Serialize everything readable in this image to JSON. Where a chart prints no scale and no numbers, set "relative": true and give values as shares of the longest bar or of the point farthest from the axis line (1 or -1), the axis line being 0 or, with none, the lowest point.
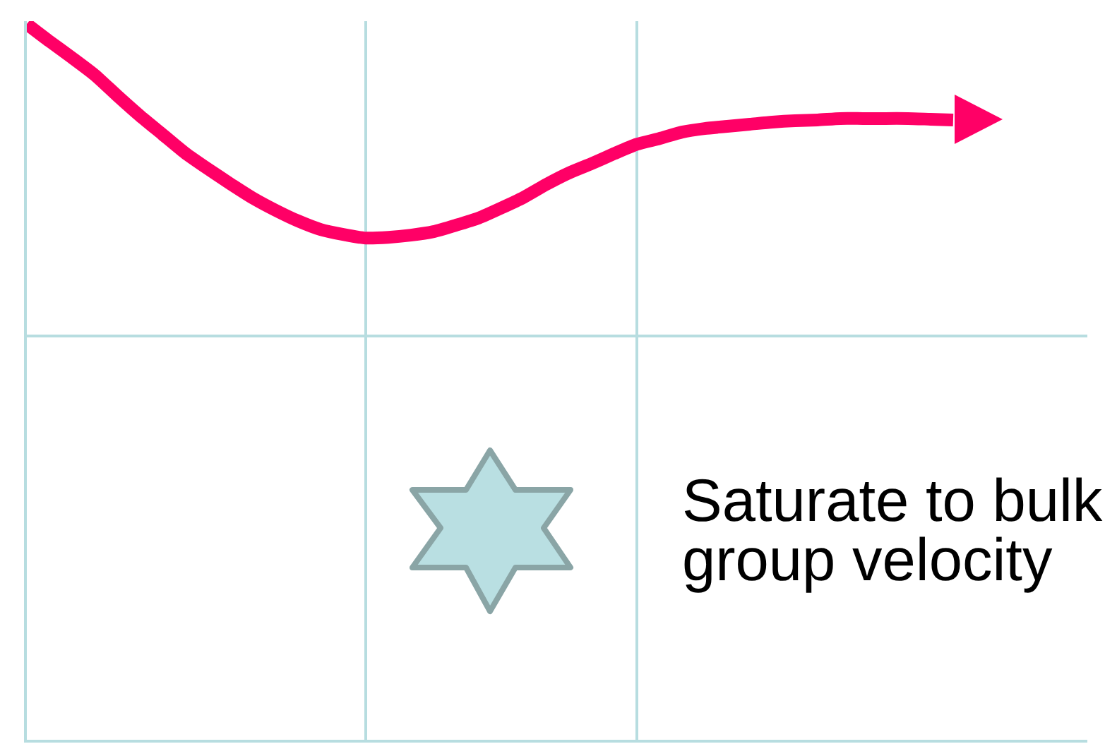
{
  "chart_data": {
    "type": "line",
    "relative": true,
    "grid": true,
    "categories": [
      null,
      null,
      null,
      null,
      null,
      null,
      null,
      null,
      null,
      null,
      null,
      null,
      null,
      null,
      null,
      null,
      null,
      null,
      null,
      null,
      null,
      null,
      null,
      null,
      null,
      null,
      null,
      null,
      null,
      null,
      null,
      null,
      null,
      null,
      null,
      null,
      null,
      null,
      null,
      null,
      null,
      null
    ],
    "series": [
      {
        "color": "#ff0066",
        "values": [
          1.0,
          0.976,
          0.953,
          0.929,
          0.9,
          0.872,
          0.846,
          0.82,
          0.798,
          0.777,
          0.757,
          0.74,
          0.725,
          0.713,
          0.706,
          0.701,
          0.702,
          0.705,
          0.71,
          0.719,
          0.729,
          0.743,
          0.758,
          0.776,
          0.792,
          0.805,
          0.819,
          0.832,
          0.84,
          0.849,
          0.854,
          0.857,
          0.86,
          0.863,
          0.865,
          0.866,
          0.868,
          0.868,
          0.868,
          0.868,
          0.867,
          0.866
        ]
      }
    ],
    "annotations": [
      "Saturate to bulk group velocity"
    ]
  }
}
